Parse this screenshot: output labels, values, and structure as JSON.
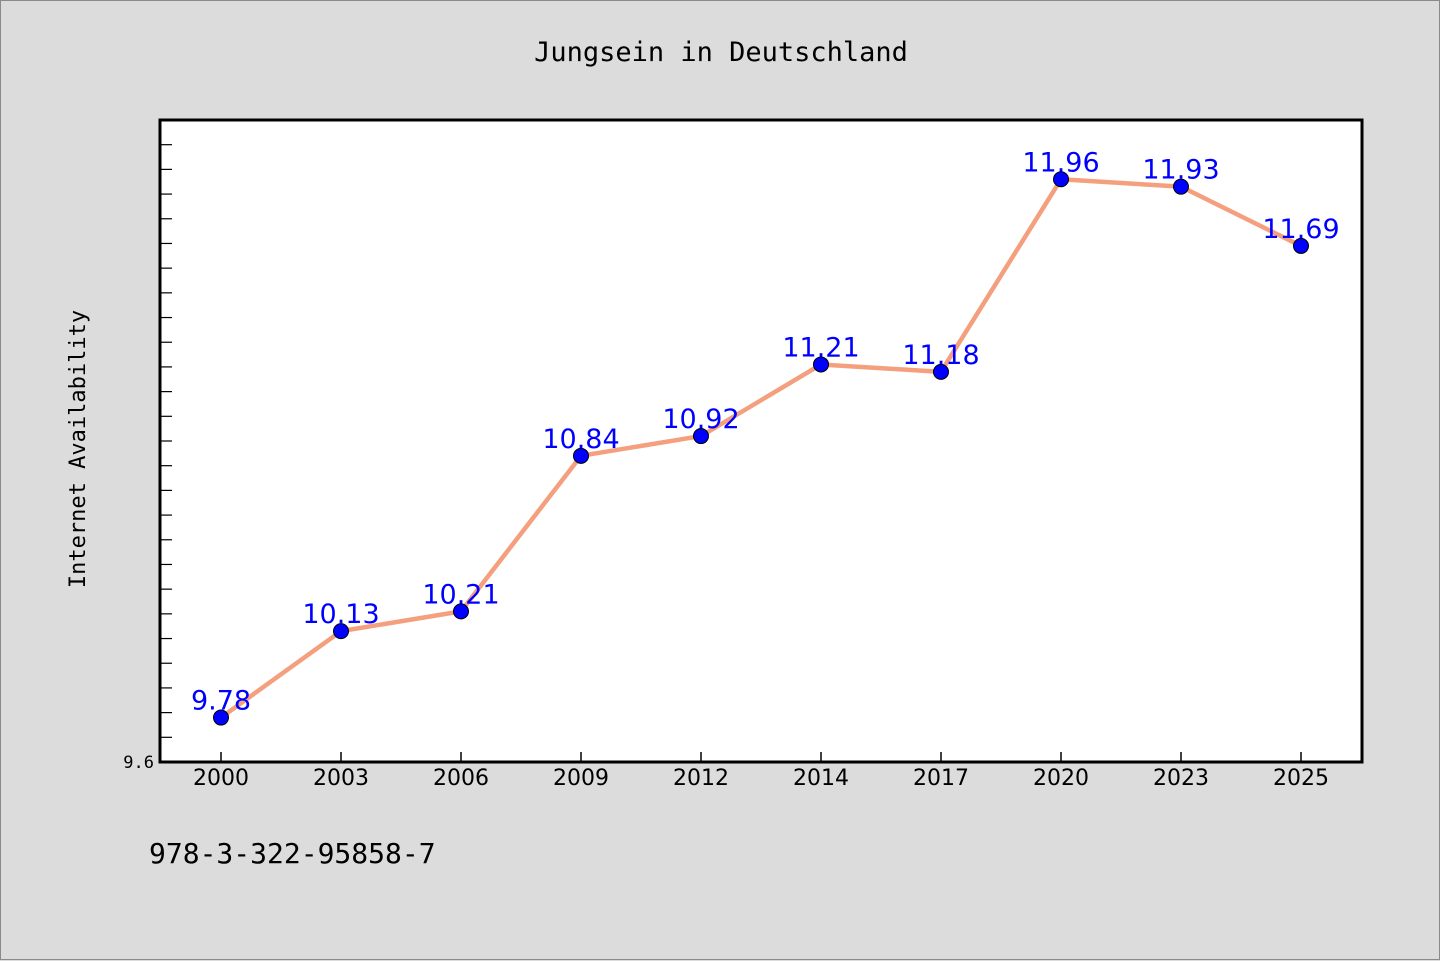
{
  "chart_data": {
    "type": "line",
    "title": "Jungsein in Deutschland",
    "xlabel": "",
    "ylabel": "Internet Availability",
    "categories": [
      "2000",
      "2003",
      "2006",
      "2009",
      "2012",
      "2014",
      "2017",
      "2020",
      "2023",
      "2025"
    ],
    "series": [
      {
        "values": [
          9.78,
          10.13,
          10.21,
          10.84,
          10.92,
          11.21,
          11.18,
          11.96,
          11.93,
          11.69
        ],
        "data_labels": [
          "9.78",
          "10.13",
          "10.21",
          "10.84",
          "10.92",
          "11.21",
          "11.18",
          "11.96",
          "11.93",
          "11.69"
        ],
        "line_color": "#f4a07e",
        "marker_color": "#0000ff"
      }
    ],
    "ylim": [
      9.6,
      12.2
    ],
    "y_tick_labels": [
      "9.6"
    ],
    "grid": false,
    "legend": "none"
  },
  "footer_text": "978-3-322-95858-7",
  "colors": {
    "background": "#dcdcdc",
    "plot_background": "#ffffff",
    "axis": "#000000",
    "label_text": "#0000ff"
  }
}
